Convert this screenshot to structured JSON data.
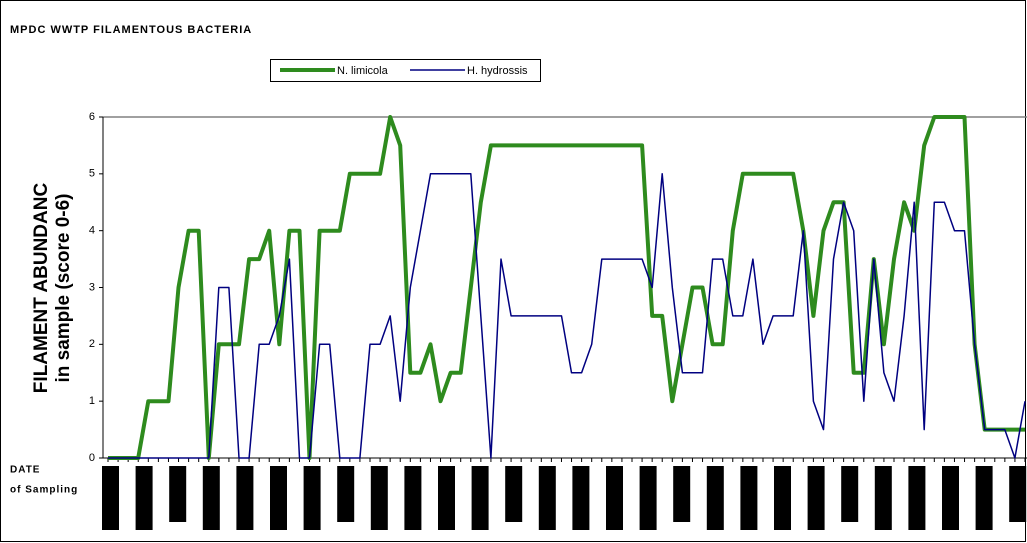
{
  "chart_data": {
    "type": "line",
    "title": "MPDC WWTP FILAMENTOUS BACTERIA",
    "y_label": [
      "FILAMENT ABUNDANC",
      "in sample (score 0-6)"
    ],
    "x_label": [
      "DATE",
      "of Sampling"
    ],
    "categories": [
      null,
      null,
      null,
      null,
      null,
      null,
      null,
      null,
      null,
      null,
      null,
      null,
      null,
      null,
      null,
      null,
      null,
      null,
      null,
      null,
      null,
      null,
      null,
      null,
      null,
      null,
      null,
      null,
      null,
      null,
      null,
      null,
      null,
      null,
      null,
      null,
      null,
      null,
      null,
      null,
      null,
      null,
      null,
      null,
      null,
      null,
      null,
      null,
      null,
      null,
      null,
      null,
      null,
      null,
      null,
      null,
      null,
      null,
      null,
      null,
      null,
      null,
      null,
      null,
      null,
      null,
      null,
      null,
      null,
      null,
      null,
      null,
      null,
      null,
      null,
      null,
      null,
      null,
      null,
      null,
      null,
      null,
      null,
      null,
      null,
      null,
      null,
      null,
      null,
      null,
      null,
      null
    ],
    "series": [
      {
        "name": "N. limicola",
        "color": "#2e8b1e",
        "width": 4,
        "values": [
          0,
          0,
          0,
          0,
          1,
          1,
          1,
          3,
          4,
          4,
          0,
          2,
          2,
          2,
          3.5,
          3.5,
          4,
          2,
          4,
          4,
          0,
          4,
          4,
          4,
          5,
          5,
          5,
          5,
          6,
          5.5,
          1.5,
          1.5,
          2,
          1,
          1.5,
          1.5,
          3,
          4.5,
          5.5,
          5.5,
          5.5,
          5.5,
          5.5,
          5.5,
          5.5,
          5.5,
          5.5,
          5.5,
          5.5,
          5.5,
          5.5,
          5.5,
          5.5,
          5.5,
          2.5,
          2.5,
          1,
          2,
          3,
          3,
          2,
          2,
          4,
          5,
          5,
          5,
          5,
          5,
          5,
          4,
          2.5,
          4,
          4.5,
          4.5,
          1.5,
          1.5,
          3.5,
          2,
          3.5,
          4.5,
          4,
          5.5,
          6,
          6,
          6,
          6,
          2,
          0.5,
          0.5,
          0.5,
          0.5,
          0.5
        ]
      },
      {
        "name": "H. hydrossis",
        "color": "#000080",
        "width": 1.5,
        "values": [
          0,
          0,
          0,
          0,
          0,
          0,
          0,
          0,
          0,
          0,
          0,
          3,
          3,
          0,
          0,
          2,
          2,
          2.5,
          3.5,
          0,
          0,
          2,
          2,
          0,
          0,
          0,
          2,
          2,
          2.5,
          1,
          3,
          4,
          5,
          5,
          5,
          5,
          5,
          2.5,
          0,
          3.5,
          2.5,
          2.5,
          2.5,
          2.5,
          2.5,
          2.5,
          1.5,
          1.5,
          2,
          3.5,
          3.5,
          3.5,
          3.5,
          3.5,
          3,
          5,
          3,
          1.5,
          1.5,
          1.5,
          3.5,
          3.5,
          2.5,
          2.5,
          3.5,
          2,
          2.5,
          2.5,
          2.5,
          4,
          1,
          0.5,
          3.5,
          4.5,
          4,
          1,
          3.5,
          1.5,
          1,
          2.5,
          4.5,
          0.5,
          4.5,
          4.5,
          4,
          4,
          2,
          0.5,
          0.5,
          0.5,
          0,
          1
        ]
      }
    ],
    "ylim": [
      0,
      6
    ],
    "yticks": [
      0,
      1,
      2,
      3,
      4,
      5,
      6
    ],
    "grid": false
  }
}
